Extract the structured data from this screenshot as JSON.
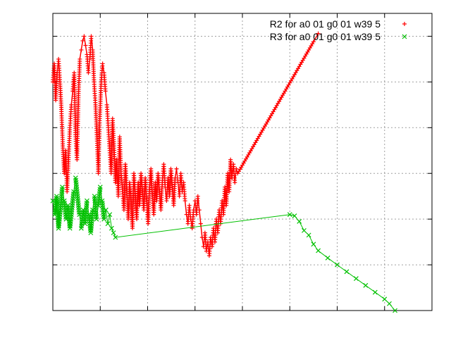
{
  "chart_data": {
    "type": "scatter",
    "title": "",
    "xlabel": "",
    "ylabel": "",
    "xlim": [
      0,
      80
    ],
    "ylim": [
      0,
      65
    ],
    "x_ticks": [
      0,
      10,
      20,
      30,
      40,
      50,
      60,
      70,
      80
    ],
    "y_ticks": [
      0,
      10,
      20,
      30,
      40,
      50,
      60
    ],
    "grid": true,
    "legend_position": "top-right",
    "series": [
      {
        "name": "R2 for a0 01 g0 01 w39 5",
        "color": "#ff0000",
        "marker": "plus",
        "points": [
          [
            0.0,
            50
          ],
          [
            0.3,
            54
          ],
          [
            0.6,
            46
          ],
          [
            0.9,
            52
          ],
          [
            1.2,
            55
          ],
          [
            1.5,
            50
          ],
          [
            1.8,
            44
          ],
          [
            2.1,
            36
          ],
          [
            2.4,
            30
          ],
          [
            2.7,
            35
          ],
          [
            3.0,
            26
          ],
          [
            3.3,
            33
          ],
          [
            3.6,
            40
          ],
          [
            3.9,
            45
          ],
          [
            4.2,
            48
          ],
          [
            4.5,
            52
          ],
          [
            4.8,
            38
          ],
          [
            5.1,
            33
          ],
          [
            5.4,
            47
          ],
          [
            5.7,
            55
          ],
          [
            6.0,
            57
          ],
          [
            6.3,
            59
          ],
          [
            6.6,
            60
          ],
          [
            6.9,
            58
          ],
          [
            7.2,
            56
          ],
          [
            7.5,
            52
          ],
          [
            7.8,
            55
          ],
          [
            8.1,
            60
          ],
          [
            8.4,
            57
          ],
          [
            8.7,
            50
          ],
          [
            9.0,
            45
          ],
          [
            9.3,
            38
          ],
          [
            9.6,
            30
          ],
          [
            9.9,
            42
          ],
          [
            10.2,
            50
          ],
          [
            10.5,
            54
          ],
          [
            10.8,
            52
          ],
          [
            11.1,
            48
          ],
          [
            11.4,
            45
          ],
          [
            11.7,
            40
          ],
          [
            12.0,
            35
          ],
          [
            12.3,
            30
          ],
          [
            12.6,
            42
          ],
          [
            12.9,
            36
          ],
          [
            13.2,
            28
          ],
          [
            13.5,
            33
          ],
          [
            13.8,
            25
          ],
          [
            14.1,
            38
          ],
          [
            14.4,
            30
          ],
          [
            14.7,
            26
          ],
          [
            15.0,
            22
          ],
          [
            15.3,
            32
          ],
          [
            15.6,
            27
          ],
          [
            15.9,
            20
          ],
          [
            16.2,
            28
          ],
          [
            16.5,
            24
          ],
          [
            16.8,
            18
          ],
          [
            17.1,
            30
          ],
          [
            17.4,
            25
          ],
          [
            17.7,
            20
          ],
          [
            18.0,
            28
          ],
          [
            18.3,
            23
          ],
          [
            18.6,
            30
          ],
          [
            18.9,
            26
          ],
          [
            19.2,
            22
          ],
          [
            19.5,
            29
          ],
          [
            19.8,
            24
          ],
          [
            20.1,
            19
          ],
          [
            20.4,
            27
          ],
          [
            20.7,
            31
          ],
          [
            21.0,
            25
          ],
          [
            21.3,
            21
          ],
          [
            21.6,
            28
          ],
          [
            21.9,
            24
          ],
          [
            22.2,
            30
          ],
          [
            22.5,
            26
          ],
          [
            22.8,
            22
          ],
          [
            23.1,
            28
          ],
          [
            23.4,
            32
          ],
          [
            23.7,
            27
          ],
          [
            24.0,
            24
          ],
          [
            24.3,
            29
          ],
          [
            24.6,
            25
          ],
          [
            24.9,
            31
          ],
          [
            25.2,
            27
          ],
          [
            25.5,
            23
          ],
          [
            25.8,
            29
          ],
          [
            26.1,
            31
          ],
          [
            26.4,
            28
          ],
          [
            26.7,
            25
          ],
          [
            27.0,
            30
          ],
          [
            27.3,
            26
          ],
          [
            27.6,
            28
          ],
          [
            27.9,
            24
          ],
          [
            28.2,
            21
          ],
          [
            28.5,
            19
          ],
          [
            28.8,
            23
          ],
          [
            29.1,
            20
          ],
          [
            29.4,
            18
          ],
          [
            29.7,
            22
          ],
          [
            30.0,
            24
          ],
          [
            30.3,
            21
          ],
          [
            30.6,
            25
          ],
          [
            30.9,
            22
          ],
          [
            31.2,
            19
          ],
          [
            31.5,
            16
          ],
          [
            31.8,
            14
          ],
          [
            32.1,
            17
          ],
          [
            32.4,
            13
          ],
          [
            32.7,
            15
          ],
          [
            33.0,
            12
          ],
          [
            33.3,
            16
          ],
          [
            33.6,
            14
          ],
          [
            33.9,
            18
          ],
          [
            34.2,
            15
          ],
          [
            34.5,
            20
          ],
          [
            34.8,
            17
          ],
          [
            35.1,
            22
          ],
          [
            35.4,
            19
          ],
          [
            35.7,
            24
          ],
          [
            36.0,
            21
          ],
          [
            36.3,
            27
          ],
          [
            36.6,
            23
          ],
          [
            36.9,
            30
          ],
          [
            37.2,
            26
          ],
          [
            37.5,
            33
          ],
          [
            37.8,
            29
          ],
          [
            38.1,
            32
          ],
          [
            38.4,
            28
          ],
          [
            38.7,
            31
          ],
          [
            39,
            30.0
          ],
          [
            41,
            33.6
          ],
          [
            43,
            37.2
          ],
          [
            45,
            40.8
          ],
          [
            47,
            44.4
          ],
          [
            49,
            48.0
          ],
          [
            51,
            51.6
          ],
          [
            53,
            55.2
          ],
          [
            55,
            58.8
          ],
          [
            56,
            60.6
          ]
        ]
      },
      {
        "name": "R3 for a0 01 g0 01 w39 5",
        "color": "#00c000",
        "marker": "x",
        "points": [
          [
            0.0,
            24
          ],
          [
            0.4,
            21
          ],
          [
            0.8,
            25
          ],
          [
            1.2,
            18
          ],
          [
            1.6,
            22
          ],
          [
            2.0,
            27
          ],
          [
            2.4,
            24
          ],
          [
            2.8,
            20
          ],
          [
            3.2,
            23
          ],
          [
            3.6,
            18
          ],
          [
            4.0,
            22
          ],
          [
            4.4,
            26
          ],
          [
            4.8,
            29
          ],
          [
            5.2,
            25
          ],
          [
            5.6,
            21
          ],
          [
            6.0,
            18
          ],
          [
            6.4,
            22
          ],
          [
            6.8,
            19
          ],
          [
            7.2,
            24
          ],
          [
            7.6,
            21
          ],
          [
            8.0,
            17
          ],
          [
            8.4,
            22
          ],
          [
            8.8,
            25
          ],
          [
            9.2,
            20
          ],
          [
            9.6,
            23
          ],
          [
            10.0,
            27
          ],
          [
            10.4,
            24
          ],
          [
            10.8,
            20
          ],
          [
            11.2,
            22
          ],
          [
            11.6,
            19
          ],
          [
            12.0,
            21
          ],
          [
            12.4,
            18
          ],
          [
            12.8,
            17
          ],
          [
            13.2,
            16
          ],
          [
            50.0,
            21
          ],
          [
            51.0,
            20.7
          ],
          [
            52.0,
            19.5
          ],
          [
            53.0,
            17.5
          ],
          [
            54.0,
            16.5
          ],
          [
            55.0,
            14.5
          ],
          [
            56.0,
            13.1
          ],
          [
            58.0,
            11.5
          ],
          [
            60.0,
            10.0
          ],
          [
            62.0,
            8.5
          ],
          [
            64.0,
            7.0
          ],
          [
            66.0,
            5.5
          ],
          [
            68.0,
            4.0
          ],
          [
            70.0,
            2.5
          ],
          [
            71.0,
            1.5
          ],
          [
            72.2,
            0.0
          ]
        ]
      }
    ]
  }
}
